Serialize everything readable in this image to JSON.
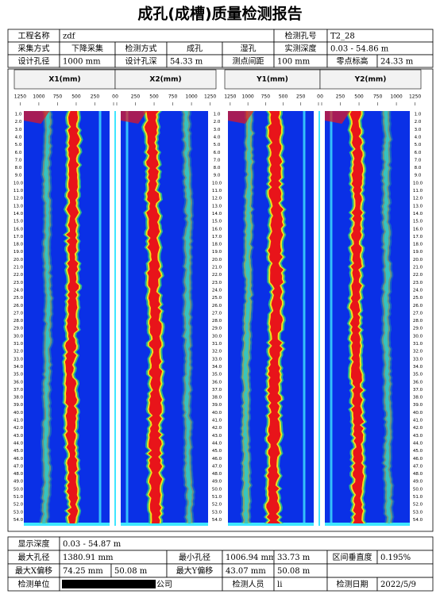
{
  "title": "成孔(成槽)质量检测报告",
  "header": {
    "rows": [
      [
        "工程名称",
        "zdf",
        "检测孔号",
        "T2_28"
      ],
      [
        "采集方式",
        "下降采集",
        "检测方式",
        "成孔",
        "湿孔",
        "实测深度",
        "0.03 - 54.86 m"
      ],
      [
        "设计孔径",
        "1000 mm",
        "设计孔深",
        "54.33 m",
        "测点间距",
        "100 mm",
        "零点标高",
        "24.33 m"
      ]
    ]
  },
  "panels": [
    {
      "label": "X1(mm)",
      "ticks": [
        1250,
        1000,
        750,
        500,
        250,
        0
      ]
    },
    {
      "label": "X2(mm)",
      "ticks": [
        0,
        250,
        500,
        750,
        1000,
        1250
      ]
    },
    {
      "label": "Y1(mm)",
      "ticks": [
        1250,
        1000,
        750,
        500,
        250,
        0
      ]
    },
    {
      "label": "Y2(mm)",
      "ticks": [
        0,
        250,
        500,
        750,
        1000,
        1250
      ]
    }
  ],
  "depths": [
    "1.0",
    "2.0",
    "3.0",
    "4.0",
    "5.0",
    "6.0",
    "7.0",
    "8.0",
    "9.0",
    "10.0",
    "11.0",
    "12.0",
    "13.0",
    "14.0",
    "15.0",
    "16.0",
    "17.0",
    "18.0",
    "19.0",
    "20.0",
    "21.0",
    "22.0",
    "23.0",
    "24.0",
    "25.0",
    "26.0",
    "27.0",
    "28.0",
    "29.0",
    "30.0",
    "31.0",
    "32.0",
    "33.0",
    "34.0",
    "35.0",
    "36.0",
    "37.0",
    "38.0",
    "39.0",
    "40.0",
    "41.0",
    "42.0",
    "43.0",
    "44.0",
    "45.0",
    "46.0",
    "47.0",
    "48.0",
    "49.0",
    "50.0",
    "51.0",
    "52.0",
    "53.0",
    "54.0"
  ],
  "footer": {
    "rows": [
      [
        "显示深度",
        "0.03 - 54.87 m"
      ],
      [
        "最大孔径",
        "1380.91 mm",
        "最小孔径",
        "1006.94 mm",
        "33.73 m",
        "区间垂直度",
        "0.195%"
      ],
      [
        "最大X偏移",
        "74.25 mm",
        "50.08 m",
        "最大Y偏移",
        "43.07 mm",
        "50.08 m"
      ],
      [
        "检测单位",
        "公司",
        "检测人员",
        "li",
        "检测日期",
        "2022/5/9"
      ]
    ]
  }
}
